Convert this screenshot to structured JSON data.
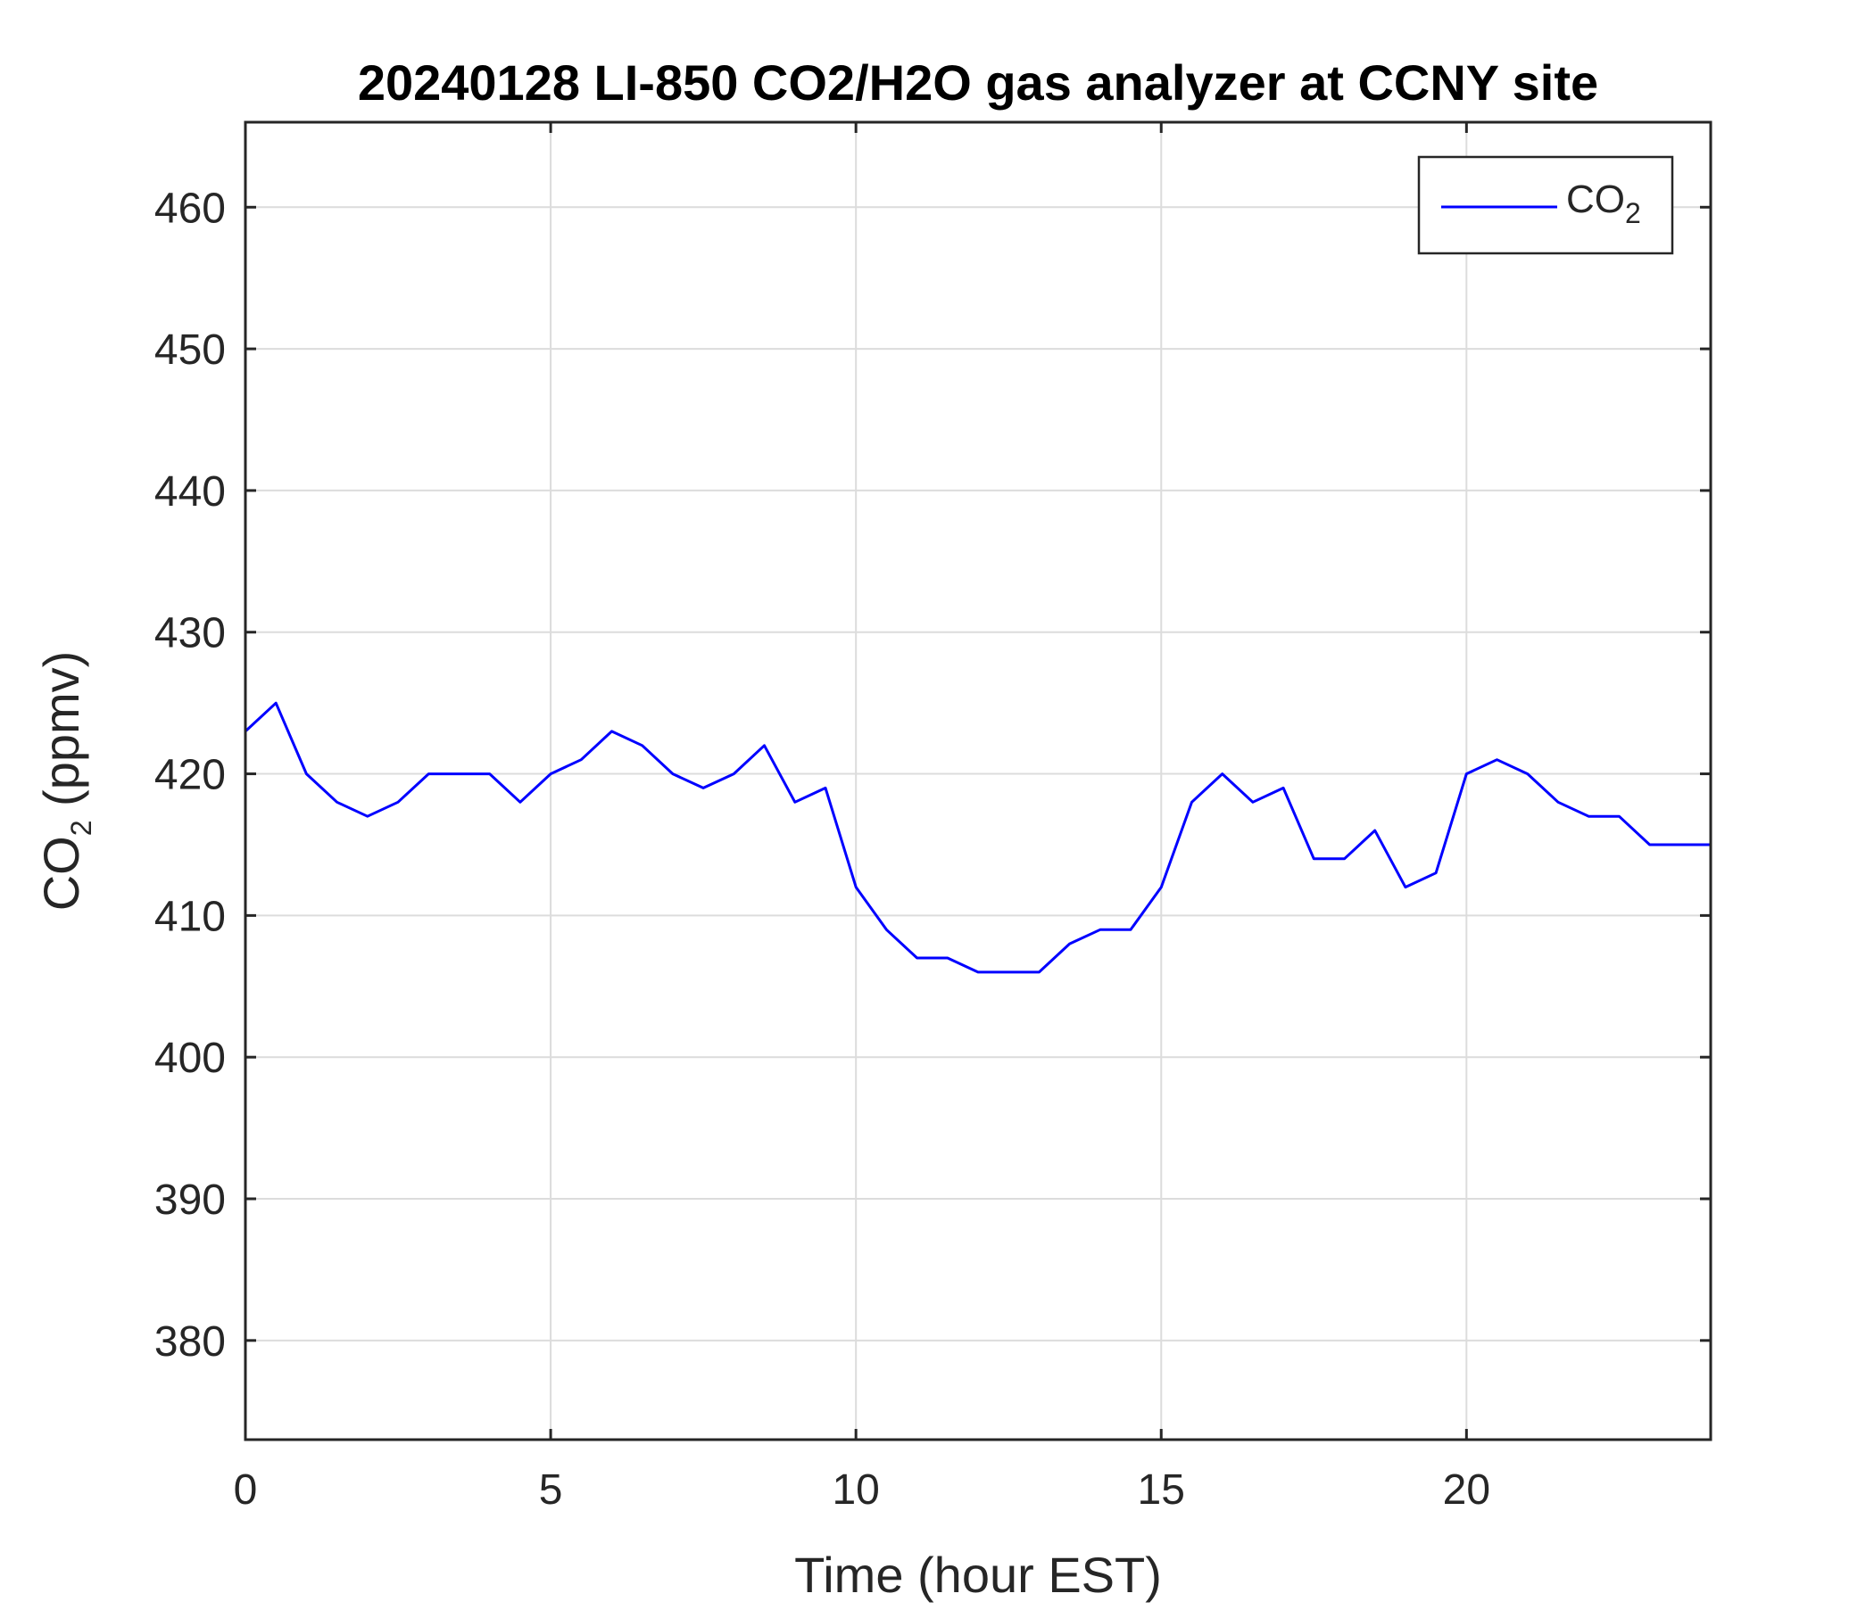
{
  "chart_data": {
    "type": "line",
    "title": "20240128 LI-850 CO2/H2O gas analyzer at CCNY site",
    "xlabel": "Time (hour EST)",
    "ylabel": {
      "main": "CO",
      "subscript": "2",
      "suffix": " (ppmv)"
    },
    "xlim": [
      0,
      24
    ],
    "ylim": [
      373,
      466
    ],
    "xticks": [
      0,
      5,
      10,
      15,
      20
    ],
    "yticks": [
      380,
      390,
      400,
      410,
      420,
      430,
      440,
      450,
      460
    ],
    "grid": true,
    "legend_position": "top-right",
    "series": [
      {
        "name": {
          "main": "CO",
          "subscript": "2"
        },
        "color": "#0000ff",
        "x": [
          0,
          0.5,
          1,
          1.5,
          2,
          2.5,
          3,
          3.5,
          4,
          4.5,
          5,
          5.5,
          6,
          6.5,
          7,
          7.5,
          8,
          8.5,
          9,
          9.5,
          10,
          10.5,
          11,
          11.5,
          12,
          12.5,
          13,
          13.5,
          14,
          14.5,
          15,
          15.5,
          16,
          16.5,
          17,
          17.5,
          18,
          18.5,
          19,
          19.5,
          20,
          20.5,
          21,
          21.5,
          22,
          22.5,
          23,
          23.5,
          24
        ],
        "y": [
          423,
          425,
          420,
          418,
          417,
          418,
          420,
          420,
          420,
          418,
          420,
          421,
          423,
          422,
          420,
          419,
          420,
          422,
          418,
          419,
          412,
          409,
          407,
          407,
          406,
          406,
          406,
          408,
          409,
          409,
          412,
          418,
          420,
          418,
          419,
          414,
          414,
          416,
          412,
          413,
          420,
          421,
          420,
          418,
          417,
          417,
          415,
          415,
          415
        ]
      }
    ]
  }
}
